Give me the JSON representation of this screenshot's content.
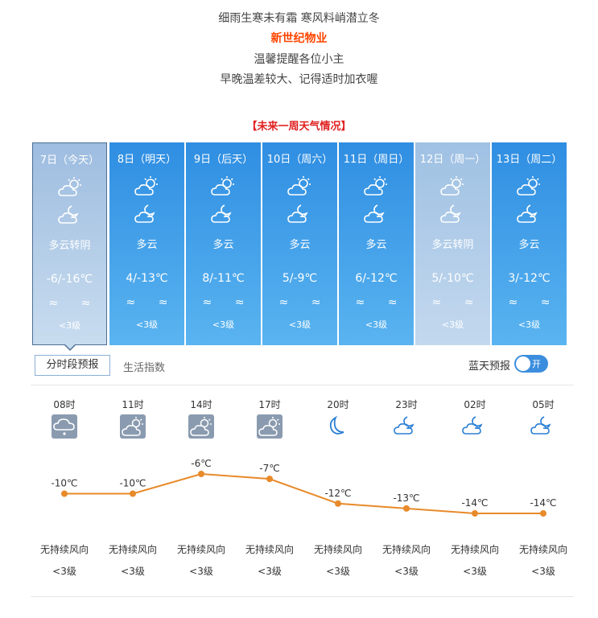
{
  "intro": {
    "line1": "细雨生寒未有霜 寒风料峭潜立冬",
    "line2": "新世纪物业",
    "line3": "温馨提醒各位小主",
    "line4": "早晚温差较大、记得适时加衣喔"
  },
  "section_title": "【未来一周天气情况】",
  "days": [
    {
      "date": "7日（今天）",
      "desc": "多云转阴",
      "temp": "-6/-16℃",
      "wind": "≈ ≈",
      "level": "<3级",
      "style": "today"
    },
    {
      "date": "8日（明天）",
      "desc": "多云",
      "temp": "4/-13℃",
      "wind": "≈ ≈",
      "level": "<3级",
      "style": "blue"
    },
    {
      "date": "9日（后天）",
      "desc": "多云",
      "temp": "8/-11℃",
      "wind": "≈ ≈",
      "level": "<3级",
      "style": "blue"
    },
    {
      "date": "10日（周六）",
      "desc": "多云",
      "temp": "5/-9℃",
      "wind": "≈ ≈",
      "level": "<3级",
      "style": "blue"
    },
    {
      "date": "11日（周日）",
      "desc": "多云",
      "temp": "6/-12℃",
      "wind": "≈ ≈",
      "level": "<3级",
      "style": "blue"
    },
    {
      "date": "12日（周一）",
      "desc": "多云转阴",
      "temp": "5/-10℃",
      "wind": "≈ ≈",
      "level": "<3级",
      "style": "cloudyish"
    },
    {
      "date": "13日（周二）",
      "desc": "多云",
      "temp": "3/-12℃",
      "wind": "≈ ≈",
      "level": "<3级",
      "style": "blue"
    }
  ],
  "tabs": {
    "active": "分时段预报",
    "other": "生活指数"
  },
  "bluesky": {
    "label": "蓝天预报",
    "toggle": "开"
  },
  "hourly": [
    {
      "time": "08时",
      "icon": "cloud-snow-icon",
      "temp_label": "-10℃",
      "temp": -10,
      "wind_dir": "无持续风向",
      "wind_level": "<3级"
    },
    {
      "time": "11时",
      "icon": "partly-cloudy-day-icon",
      "temp_label": "-10℃",
      "temp": -10,
      "wind_dir": "无持续风向",
      "wind_level": "<3级"
    },
    {
      "time": "14时",
      "icon": "partly-cloudy-day-icon",
      "temp_label": "-6℃",
      "temp": -6,
      "wind_dir": "无持续风向",
      "wind_level": "<3级"
    },
    {
      "time": "17时",
      "icon": "partly-cloudy-day-icon",
      "temp_label": "-7℃",
      "temp": -7,
      "wind_dir": "无持续风向",
      "wind_level": "<3级"
    },
    {
      "time": "20时",
      "icon": "moon-icon",
      "temp_label": "-12℃",
      "temp": -12,
      "wind_dir": "无持续风向",
      "wind_level": "<3级"
    },
    {
      "time": "23时",
      "icon": "partly-cloudy-night-icon",
      "temp_label": "-13℃",
      "temp": -13,
      "wind_dir": "无持续风向",
      "wind_level": "<3级"
    },
    {
      "time": "02时",
      "icon": "partly-cloudy-night-icon",
      "temp_label": "-14℃",
      "temp": -14,
      "wind_dir": "无持续风向",
      "wind_level": "<3级"
    },
    {
      "time": "05时",
      "icon": "partly-cloudy-night-icon",
      "temp_label": "-14℃",
      "temp": -14,
      "wind_dir": "无持续风向",
      "wind_level": "<3级"
    }
  ],
  "chart_data": {
    "type": "line",
    "categories": [
      "08时",
      "11时",
      "14时",
      "17时",
      "20时",
      "23时",
      "02时",
      "05时"
    ],
    "series": [
      {
        "values": [
          -10,
          -10,
          -6,
          -7,
          -12,
          -13,
          -14,
          -14
        ]
      }
    ],
    "line_color": "#e88a2a"
  }
}
